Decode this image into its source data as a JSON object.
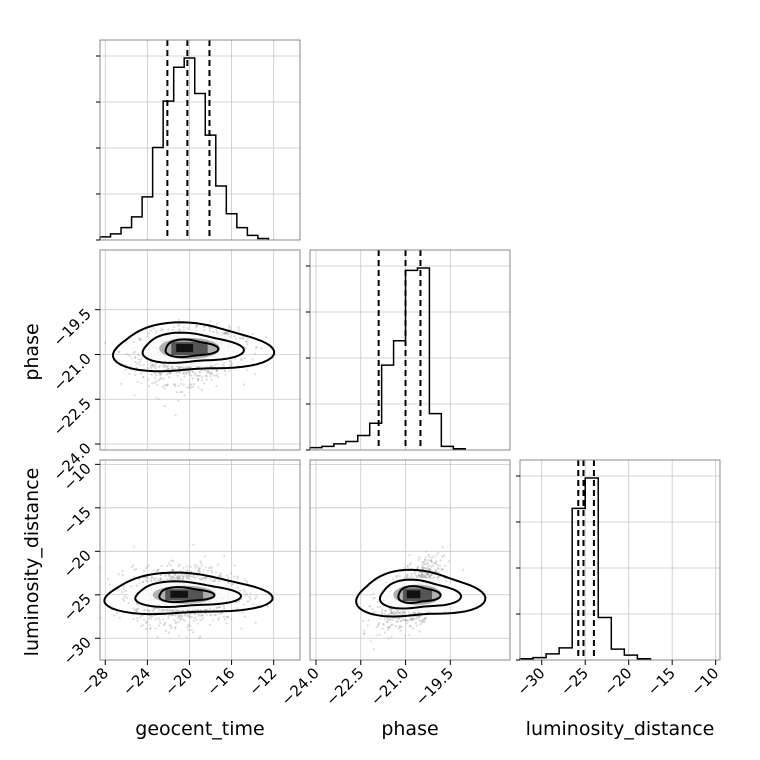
{
  "chart_data": {
    "type": "corner",
    "parameters": [
      "geocent_time",
      "phase",
      "luminosity_distance"
    ],
    "axis_labels": {
      "bottom": [
        "geocent_time",
        "phase",
        "luminosity_distance"
      ],
      "left": [
        "phase",
        "luminosity_distance"
      ]
    },
    "ranges": {
      "geocent_time": [
        -28.5,
        -9.5
      ],
      "phase": [
        -24.2,
        -17.5
      ],
      "luminosity_distance": [
        -32.5,
        -9.5
      ]
    },
    "ticks": {
      "geocent_time": [
        -28,
        -24,
        -20,
        -16,
        -12
      ],
      "phase": [
        -24.0,
        -22.5,
        -21.0,
        -19.5
      ],
      "luminosity_distance": [
        -30,
        -25,
        -20,
        -15,
        -10
      ]
    },
    "tick_labels": {
      "geocent_time": [
        "−28",
        "−24",
        "−20",
        "−16",
        "−12"
      ],
      "phase": [
        "−24.0",
        "−22.5",
        "−21.0",
        "−19.5"
      ],
      "luminosity_distance": [
        "−30",
        "−25",
        "−20",
        "−15",
        "−10"
      ]
    },
    "quantiles": {
      "geocent_time": [
        -22.1,
        -20.2,
        -18.1
      ],
      "phase": [
        -21.9,
        -21.0,
        -20.5
      ],
      "luminosity_distance": [
        -25.8,
        -25.2,
        -24.0
      ]
    },
    "histograms": {
      "geocent_time": {
        "edges": [
          -28.5,
          -27.5,
          -26.5,
          -25.5,
          -24.5,
          -23.5,
          -22.5,
          -21.5,
          -20.5,
          -19.5,
          -18.5,
          -17.5,
          -16.5,
          -15.5,
          -14.5,
          -13.5,
          -12.5
        ],
        "counts": [
          2,
          4,
          8,
          15,
          28,
          60,
          90,
          112,
          118,
          95,
          68,
          35,
          17,
          8,
          3,
          1
        ]
      },
      "phase": {
        "edges": [
          -24.2,
          -23.8,
          -23.4,
          -23.0,
          -22.6,
          -22.2,
          -21.8,
          -21.4,
          -21.0,
          -20.6,
          -20.2,
          -19.8,
          -19.4,
          -19.0
        ],
        "counts": [
          2,
          3,
          5,
          7,
          12,
          22,
          70,
          90,
          148,
          150,
          30,
          3,
          1
        ]
      },
      "luminosity_distance": {
        "edges": [
          -32.5,
          -31.0,
          -29.5,
          -28.0,
          -26.5,
          -25.0,
          -23.5,
          -22.0,
          -20.5,
          -19.0,
          -17.5
        ],
        "counts": [
          1,
          2,
          5,
          10,
          125,
          150,
          35,
          9,
          4,
          1
        ]
      }
    },
    "pair_centers": {
      "phase_vs_geocent_time": [
        -20.0,
        -20.8
      ],
      "luminosity_distance_vs_geocent_time": [
        -20.5,
        -25.0
      ],
      "luminosity_distance_vs_phase": [
        -20.6,
        -25.0
      ]
    },
    "grid": true
  }
}
